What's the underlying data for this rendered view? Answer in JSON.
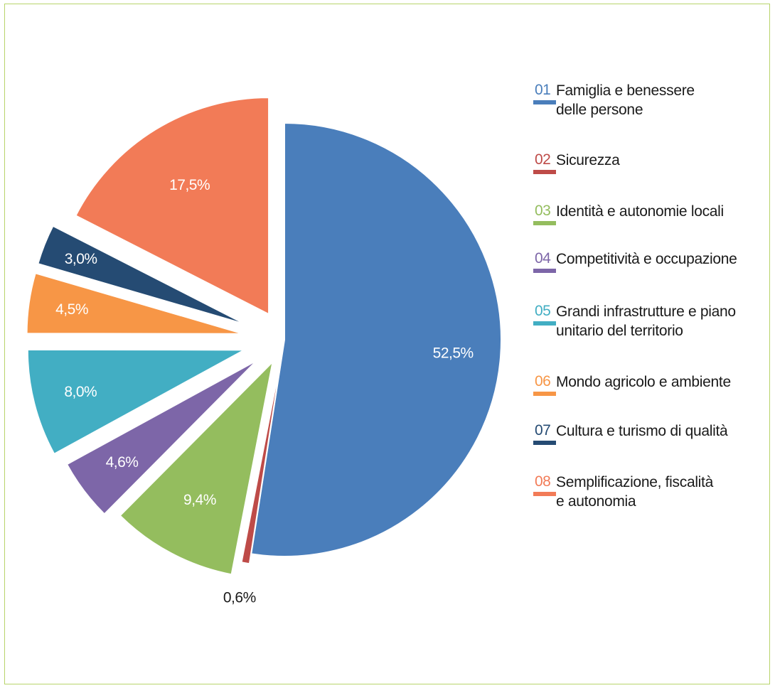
{
  "chart_data": {
    "type": "pie",
    "slices": [
      {
        "code": "01",
        "label": "Famiglia e benessere\ndelle persone",
        "value": 52.5,
        "value_label": "52,5%",
        "color": "#4a7ebb"
      },
      {
        "code": "02",
        "label": "Sicurezza",
        "value": 0.6,
        "value_label": "0,6%",
        "color": "#be4b48"
      },
      {
        "code": "03",
        "label": "Identità e autonomie locali",
        "value": 9.4,
        "value_label": "9,4%",
        "color": "#94bd5e"
      },
      {
        "code": "04",
        "label": "Competitività e occupazione",
        "value": 4.6,
        "value_label": "4,6%",
        "color": "#7d66a8"
      },
      {
        "code": "05",
        "label": "Grandi infrastrutture e piano\nunitario del territorio",
        "value": 8.0,
        "value_label": "8,0%",
        "color": "#42aec3"
      },
      {
        "code": "06",
        "label": "Mondo agricolo e ambiente",
        "value": 4.5,
        "value_label": "4,5%",
        "color": "#f79646"
      },
      {
        "code": "07",
        "label": "Cultura e turismo di qualità",
        "value": 3.0,
        "value_label": "3,0%",
        "color": "#254b73"
      },
      {
        "code": "08",
        "label": "Semplificazione, fiscalità\ne autonomia",
        "value": 17.5,
        "value_label": "17,5%",
        "color": "#f27b57"
      }
    ],
    "legend_position": "right"
  }
}
